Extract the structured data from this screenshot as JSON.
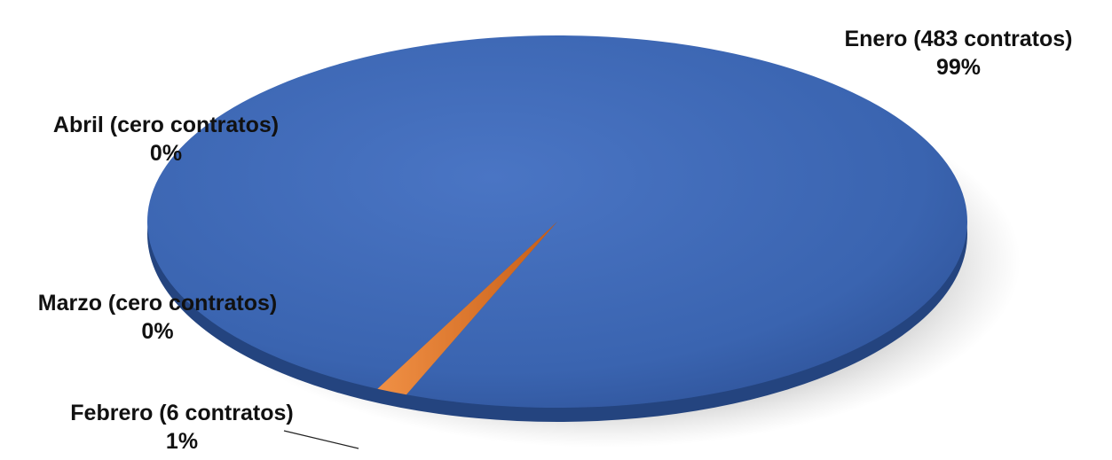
{
  "chart_data": {
    "type": "pie",
    "style": "3d",
    "categories": [
      "Enero",
      "Febrero",
      "Marzo",
      "Abril"
    ],
    "values": [
      483,
      6,
      0,
      0
    ],
    "labels": [
      {
        "name": "Enero (483 contratos)",
        "percent": "99%"
      },
      {
        "name": "Febrero (6 contratos)",
        "percent": "1%"
      },
      {
        "name": "Marzo (cero contratos)",
        "percent": "0%"
      },
      {
        "name": "Abril (cero contratos)",
        "percent": "0%"
      }
    ],
    "colors": [
      "#3a64b0",
      "#e3782c",
      "#a5a5a5",
      "#ffc000"
    ]
  }
}
